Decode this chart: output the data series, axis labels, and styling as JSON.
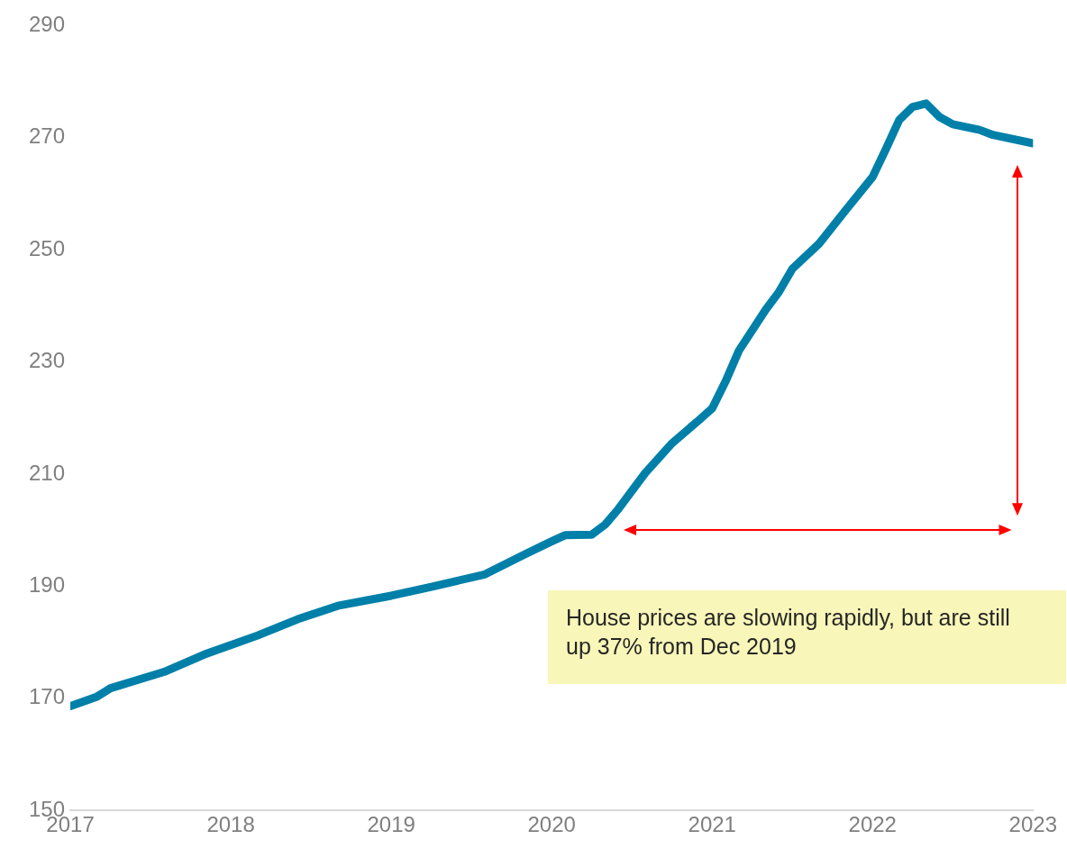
{
  "chart_data": {
    "type": "line",
    "x": [
      "2017-01",
      "2017-03",
      "2017-04",
      "2017-08",
      "2017-11",
      "2018-03",
      "2018-06",
      "2018-09",
      "2019-01",
      "2019-04",
      "2019-08",
      "2019-11",
      "2020-01",
      "2020-02",
      "2020-04",
      "2020-05",
      "2020-06",
      "2020-08",
      "2020-10",
      "2020-12",
      "2021-01",
      "2021-02",
      "2021-03",
      "2021-05",
      "2021-06",
      "2021-07",
      "2021-09",
      "2021-11",
      "2022-01",
      "2022-02",
      "2022-03",
      "2022-04",
      "2022-05",
      "2022-06",
      "2022-07",
      "2022-09",
      "2022-10",
      "2023-01"
    ],
    "series": [
      {
        "color": "#0080a8",
        "values": [
          168.6,
          170.3,
          171.8,
          174.7,
          177.8,
          181.2,
          184.1,
          186.5,
          188.3,
          189.9,
          192.1,
          195.7,
          198,
          199.1,
          199.2,
          201,
          203.8,
          210.2,
          215.5,
          219.6,
          221.7,
          226.5,
          232,
          239.3,
          242.5,
          246.6,
          251.1,
          257.1,
          263,
          268,
          273.2,
          275.5,
          276.1,
          273.7,
          272.4,
          271.4,
          270.5,
          269
        ]
      }
    ],
    "xlim": [
      "2017",
      "2023"
    ],
    "xticks": [
      "2017",
      "2018",
      "2019",
      "2020",
      "2021",
      "2022",
      "2023"
    ],
    "ylim": [
      150,
      290
    ],
    "yticks": [
      150,
      170,
      190,
      210,
      230,
      250,
      270,
      290
    ],
    "grid": false,
    "legend": false,
    "marker": "none",
    "line_style": "solid",
    "annotations": [
      "House prices are slowing rapidly, but are still up 37% from Dec 2019"
    ]
  }
}
